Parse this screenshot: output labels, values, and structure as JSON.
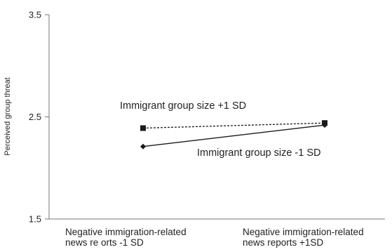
{
  "chart_data": {
    "type": "line",
    "title": "",
    "xlabel": "",
    "ylabel": "Perceived group threat",
    "ylim": [
      1.5,
      3.5
    ],
    "yticks": [
      "3.5",
      "2.5",
      "1.5"
    ],
    "grid": false,
    "categories": [
      [
        "Negative immigration-related",
        "news re orts -1 SD"
      ],
      [
        "Negative immigration-related",
        "news reports +1SD"
      ]
    ],
    "series": [
      {
        "name": "Immigrant group size +1 SD",
        "values": [
          2.39,
          2.44
        ],
        "marker": "square",
        "line": "dashed",
        "color": "#1a1a1a"
      },
      {
        "name": "Immigrant group size -1 SD",
        "values": [
          2.21,
          2.42
        ],
        "marker": "diamond",
        "line": "solid",
        "color": "#1a1a1a"
      }
    ]
  }
}
